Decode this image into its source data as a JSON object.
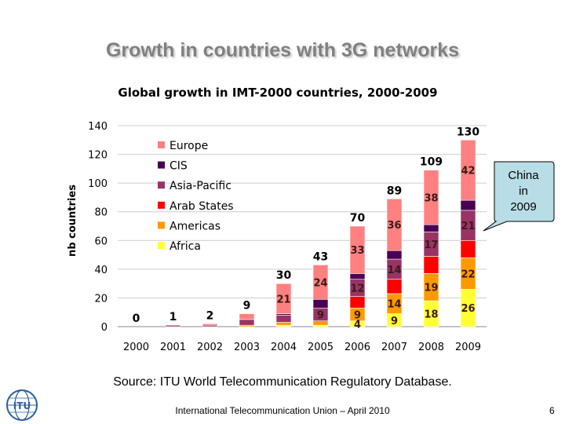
{
  "slide": {
    "title": "Growth in countries with 3G networks",
    "callout": [
      "China",
      "in",
      "2009"
    ],
    "source": "Source: ITU World Telecommunication Regulatory Database.",
    "footer": "International Telecommunication Union – April 2010",
    "page_number": "6",
    "logo_text": "ITU"
  },
  "chart_data": {
    "type": "bar",
    "stacked": true,
    "title": "Global growth in IMT-2000 countries, 2000-2009",
    "ylabel": "nb countries",
    "xlabel": "",
    "ylim": [
      0,
      140
    ],
    "yticks": [
      0,
      20,
      40,
      60,
      80,
      100,
      120,
      140
    ],
    "grid": true,
    "legend_position": "top-left",
    "categories": [
      "2000",
      "2001",
      "2002",
      "2003",
      "2004",
      "2005",
      "2006",
      "2007",
      "2008",
      "2009"
    ],
    "totals": [
      0,
      1,
      2,
      9,
      30,
      43,
      70,
      89,
      109,
      130
    ],
    "series": [
      {
        "name": "Africa",
        "color": "#ffff33",
        "values": [
          0,
          0,
          0,
          0,
          1,
          1,
          4,
          9,
          18,
          26
        ],
        "labels": [
          "",
          "",
          "",
          "",
          "",
          "",
          "4",
          "9",
          "18",
          "26"
        ]
      },
      {
        "name": "Americas",
        "color": "#ff9900",
        "values": [
          0,
          0,
          0,
          1,
          2,
          3,
          9,
          14,
          19,
          22
        ],
        "labels": [
          "",
          "",
          "",
          "",
          "",
          "",
          "9",
          "14",
          "19",
          "22"
        ]
      },
      {
        "name": "Arab States",
        "color": "#ff0000",
        "values": [
          0,
          0,
          0,
          0,
          0,
          0,
          8,
          10,
          12,
          12
        ],
        "labels": [
          "",
          "",
          "",
          "",
          "",
          "",
          "",
          "",
          "",
          ""
        ]
      },
      {
        "name": "Asia-Pacific",
        "color": "#993366",
        "values": [
          0,
          1,
          1,
          4,
          5,
          9,
          12,
          14,
          17,
          21
        ],
        "labels": [
          "",
          "",
          "",
          "",
          "",
          "9",
          "12",
          "14",
          "17",
          "21"
        ]
      },
      {
        "name": "CIS",
        "color": "#4a0050",
        "values": [
          0,
          0,
          0,
          0,
          1,
          6,
          4,
          6,
          5,
          7
        ],
        "labels": [
          "",
          "",
          "",
          "",
          "",
          "",
          "",
          "",
          "",
          ""
        ]
      },
      {
        "name": "Europe",
        "color": "#ff8080",
        "values": [
          0,
          0,
          1,
          4,
          21,
          24,
          33,
          36,
          38,
          42
        ],
        "labels": [
          "",
          "",
          "",
          "",
          "21",
          "24",
          "33",
          "36",
          "38",
          "42"
        ]
      }
    ]
  }
}
